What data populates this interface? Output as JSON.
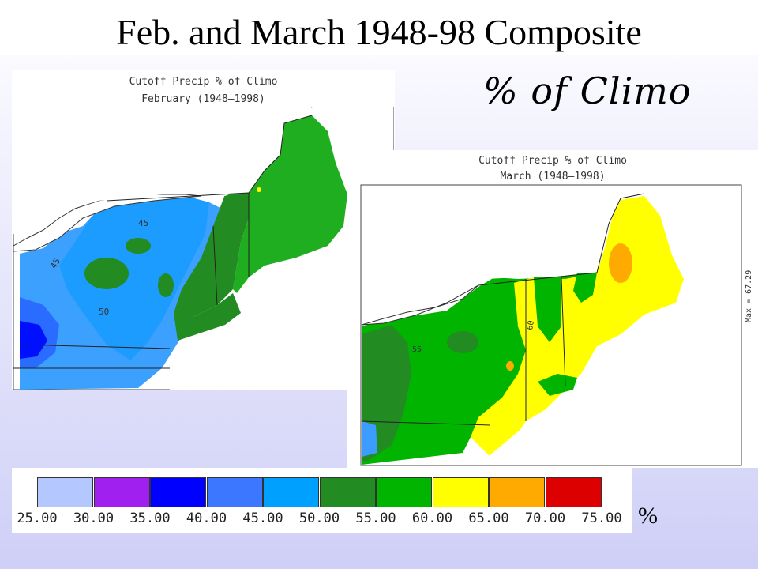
{
  "slide": {
    "title": "Feb. and March 1948-98 Composite",
    "subtitle": "% of Climo",
    "unit": "%"
  },
  "maps": {
    "february": {
      "title_line1": "Cutoff Precip % of Climo",
      "title_line2": "February (1948–1998)",
      "contour_labels": [
        "45",
        "45",
        "50"
      ]
    },
    "march": {
      "title_line1": "Cutoff Precip % of Climo",
      "title_line2": "March (1948–1998)",
      "max_label": "Max = 67.29",
      "contour_labels": [
        "60",
        "55"
      ]
    }
  },
  "colorbar": {
    "ticks": [
      "25.00",
      "30.00",
      "35.00",
      "40.00",
      "45.00",
      "50.00",
      "55.00",
      "60.00",
      "65.00",
      "70.00",
      "75.00"
    ],
    "colors": [
      "#b4c8ff",
      "#a020f0",
      "#0000ff",
      "#3c78ff",
      "#00a0ff",
      "#228b22",
      "#00b400",
      "#ffff00",
      "#ffaa00",
      "#dc0000"
    ]
  }
}
